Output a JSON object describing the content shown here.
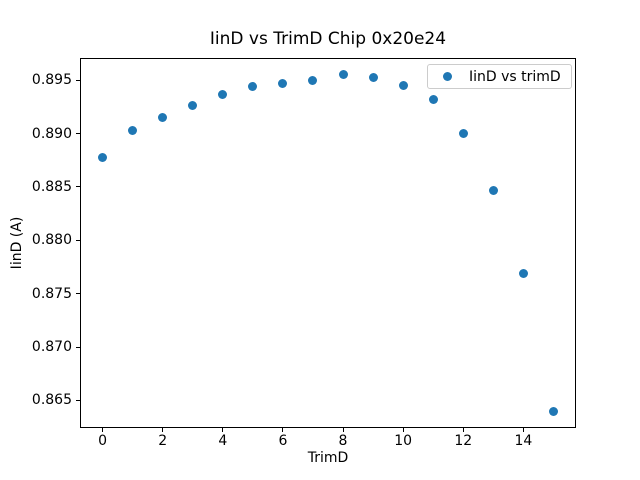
{
  "figure": {
    "background": "#ffffff",
    "frame_color": "#000000"
  },
  "chart_data": {
    "type": "scatter",
    "title": "IinD vs TrimD Chip 0x20e24",
    "xlabel": "TrimD",
    "ylabel": "IinD (A)",
    "legend": {
      "label": "IinD vs trimD",
      "position": "upper right"
    },
    "marker_color": "#1f77b4",
    "grid": false,
    "x": [
      0,
      1,
      2,
      3,
      4,
      5,
      6,
      7,
      8,
      9,
      10,
      11,
      12,
      13,
      14,
      15
    ],
    "y": [
      0.8878,
      0.8903,
      0.8915,
      0.8926,
      0.8937,
      0.8944,
      0.8947,
      0.895,
      0.8955,
      0.8953,
      0.8945,
      0.8932,
      0.89,
      0.8847,
      0.8769,
      0.864
    ],
    "xlim": [
      -0.75,
      15.75
    ],
    "ylim": [
      0.86242,
      0.89708
    ],
    "xticks": [
      0,
      2,
      4,
      6,
      8,
      10,
      12,
      14
    ],
    "xtick_labels": [
      "0",
      "2",
      "4",
      "6",
      "8",
      "10",
      "12",
      "14"
    ],
    "yticks": [
      0.865,
      0.87,
      0.875,
      0.88,
      0.885,
      0.89,
      0.895
    ],
    "ytick_labels": [
      "0.865",
      "0.870",
      "0.875",
      "0.880",
      "0.885",
      "0.890",
      "0.895"
    ]
  }
}
